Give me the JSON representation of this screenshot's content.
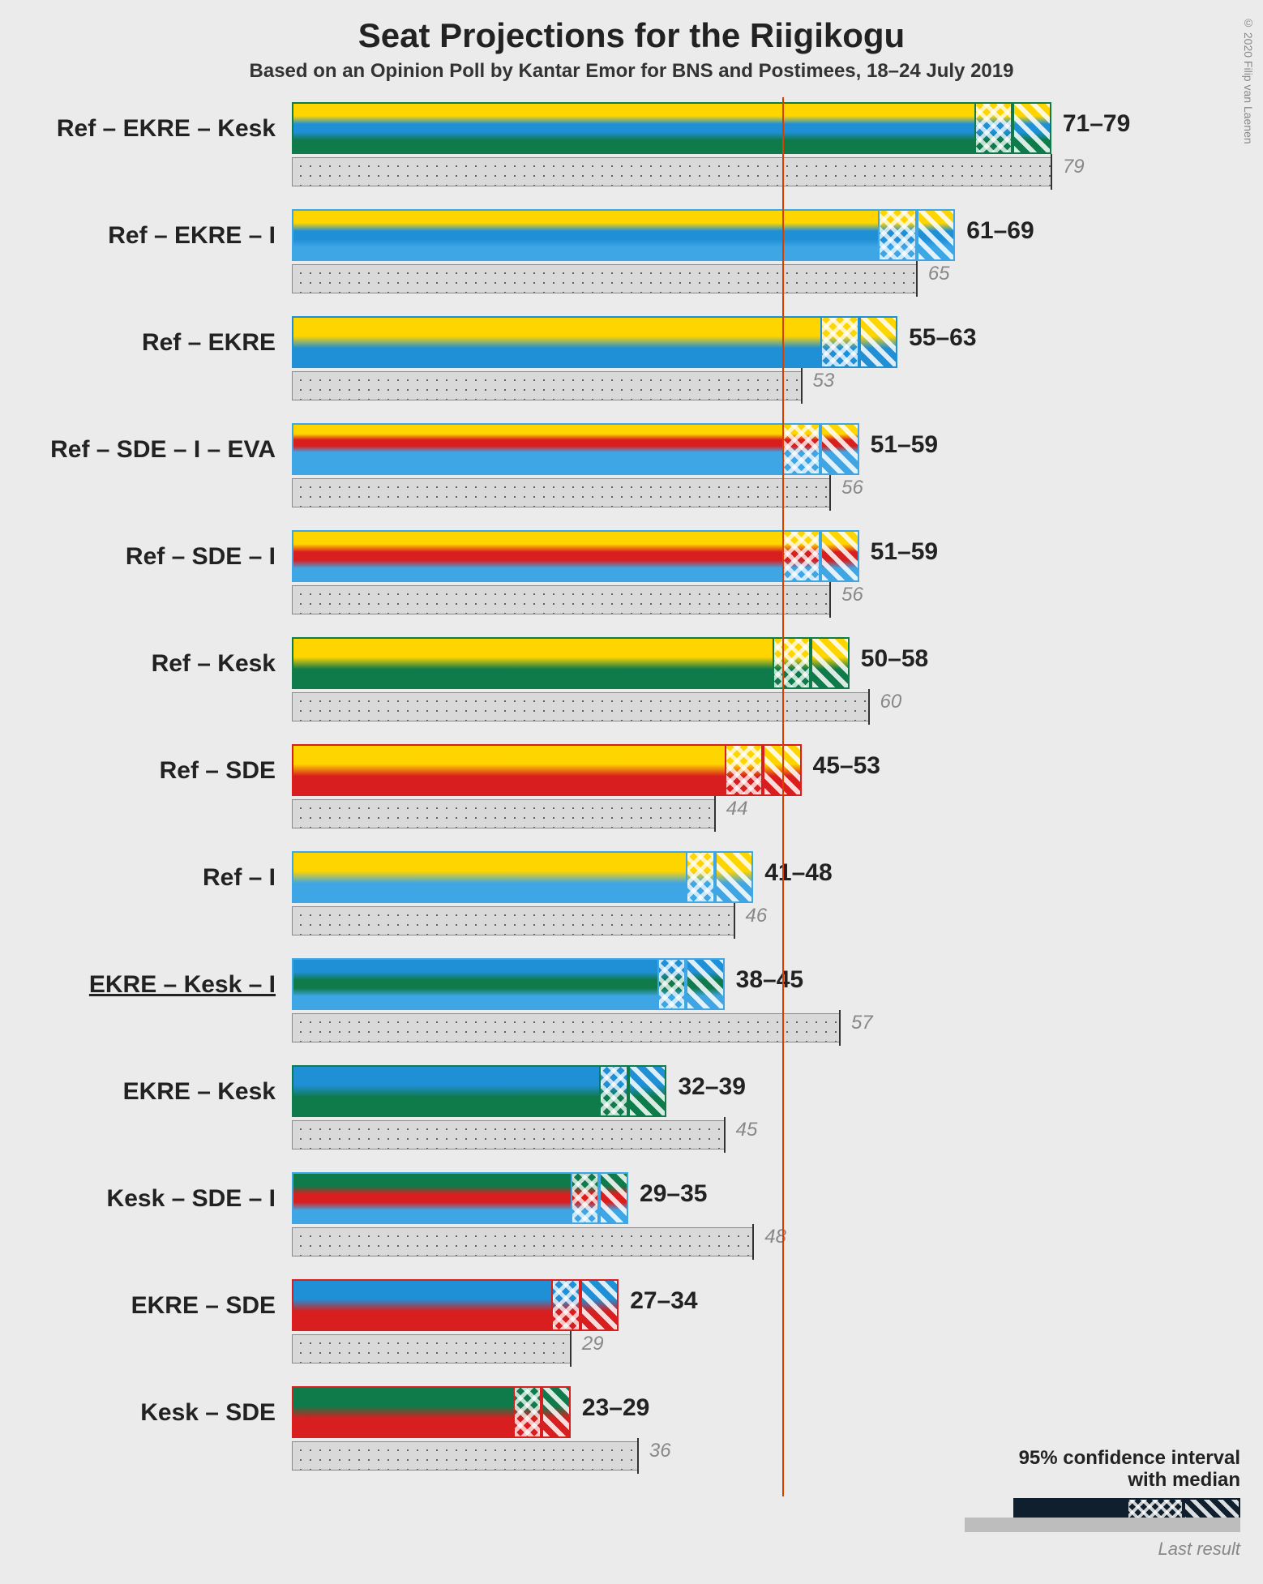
{
  "title": "Seat Projections for the Riigikogu",
  "subtitle": "Based on an Opinion Poll by Kantar Emor for BNS and Postimees, 18–24 July 2019",
  "copyright": "© 2020 Filip van Laenen",
  "x_axis": {
    "max": 85,
    "majority_threshold": 51
  },
  "party_colors": {
    "Ref": "#ffd500",
    "EKRE": "#1f8fd6",
    "Kesk": "#0f7a4a",
    "SDE": "#d81e1e",
    "I": "#3fa6e6",
    "EVA": "#3fa6e6"
  },
  "legend": {
    "ci_label": "95% confidence interval\nwith median",
    "last_label": "Last result"
  },
  "rows": [
    {
      "label": "Ref – EKRE – Kesk",
      "parties": [
        "Ref",
        "EKRE",
        "Kesk"
      ],
      "low": 71,
      "median": 75,
      "high": 79,
      "last": 79,
      "underline": false
    },
    {
      "label": "Ref – EKRE – I",
      "parties": [
        "Ref",
        "EKRE",
        "I"
      ],
      "low": 61,
      "median": 65,
      "high": 69,
      "last": 65,
      "underline": false
    },
    {
      "label": "Ref – EKRE",
      "parties": [
        "Ref",
        "EKRE"
      ],
      "low": 55,
      "median": 59,
      "high": 63,
      "last": 53,
      "underline": false
    },
    {
      "label": "Ref – SDE – I – EVA",
      "parties": [
        "Ref",
        "SDE",
        "I",
        "EVA"
      ],
      "low": 51,
      "median": 55,
      "high": 59,
      "last": 56,
      "underline": false
    },
    {
      "label": "Ref – SDE – I",
      "parties": [
        "Ref",
        "SDE",
        "I"
      ],
      "low": 51,
      "median": 55,
      "high": 59,
      "last": 56,
      "underline": false
    },
    {
      "label": "Ref – Kesk",
      "parties": [
        "Ref",
        "Kesk"
      ],
      "low": 50,
      "median": 54,
      "high": 58,
      "last": 60,
      "underline": false
    },
    {
      "label": "Ref – SDE",
      "parties": [
        "Ref",
        "SDE"
      ],
      "low": 45,
      "median": 49,
      "high": 53,
      "last": 44,
      "underline": false
    },
    {
      "label": "Ref – I",
      "parties": [
        "Ref",
        "I"
      ],
      "low": 41,
      "median": 44,
      "high": 48,
      "last": 46,
      "underline": false
    },
    {
      "label": "EKRE – Kesk – I",
      "parties": [
        "EKRE",
        "Kesk",
        "I"
      ],
      "low": 38,
      "median": 41,
      "high": 45,
      "last": 57,
      "underline": true
    },
    {
      "label": "EKRE – Kesk",
      "parties": [
        "EKRE",
        "Kesk"
      ],
      "low": 32,
      "median": 35,
      "high": 39,
      "last": 45,
      "underline": false
    },
    {
      "label": "Kesk – SDE – I",
      "parties": [
        "Kesk",
        "SDE",
        "I"
      ],
      "low": 29,
      "median": 32,
      "high": 35,
      "last": 48,
      "underline": false
    },
    {
      "label": "EKRE – SDE",
      "parties": [
        "EKRE",
        "SDE"
      ],
      "low": 27,
      "median": 30,
      "high": 34,
      "last": 29,
      "underline": false
    },
    {
      "label": "Kesk – SDE",
      "parties": [
        "Kesk",
        "SDE"
      ],
      "low": 23,
      "median": 26,
      "high": 29,
      "last": 36,
      "underline": false
    }
  ]
}
